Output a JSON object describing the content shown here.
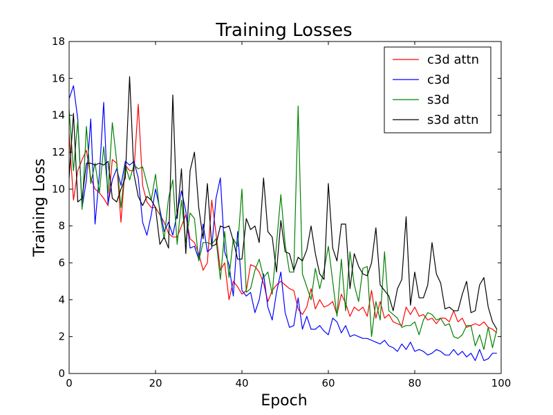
{
  "chart_data": {
    "type": "line",
    "title": "Training Losses",
    "xlabel": "Epoch",
    "ylabel": "Training Loss",
    "xlim": [
      0,
      100
    ],
    "ylim": [
      0,
      18
    ],
    "xticks": [
      0,
      20,
      40,
      60,
      80,
      100
    ],
    "yticks": [
      0,
      2,
      4,
      6,
      8,
      10,
      12,
      14,
      16,
      18
    ],
    "grid": false,
    "legend_position": "top-right",
    "series": [
      {
        "name": "c3d attn",
        "color": "#ff0000",
        "x": [
          0,
          1,
          2,
          3,
          4,
          5,
          6,
          7,
          8,
          9,
          10,
          11,
          12,
          13,
          14,
          15,
          16,
          17,
          18,
          19,
          20,
          21,
          22,
          23,
          24,
          25,
          26,
          27,
          28,
          29,
          30,
          31,
          32,
          33,
          34,
          35,
          36,
          37,
          38,
          39,
          40,
          41,
          42,
          43,
          44,
          45,
          46,
          47,
          48,
          49,
          50,
          51,
          52,
          53,
          54,
          55,
          56,
          57,
          58,
          59,
          60,
          61,
          62,
          63,
          64,
          65,
          66,
          67,
          68,
          69,
          70,
          71,
          72,
          73,
          74,
          75,
          76,
          77,
          78,
          79,
          80,
          81,
          82,
          83,
          84,
          85,
          86,
          87,
          88,
          89,
          90,
          91,
          92,
          93,
          94,
          95,
          96,
          97,
          98,
          99
        ],
        "y": [
          13.0,
          9.4,
          11.0,
          11.6,
          12.1,
          10.6,
          10.0,
          9.8,
          9.5,
          9.1,
          11.6,
          11.4,
          8.2,
          11.3,
          11.0,
          11.0,
          14.6,
          10.2,
          9.3,
          9.0,
          9.0,
          8.6,
          8.2,
          7.6,
          7.4,
          7.4,
          8.0,
          8.6,
          7.3,
          7.1,
          6.5,
          5.6,
          6.0,
          9.4,
          7.6,
          5.6,
          6.0,
          4.0,
          5.0,
          4.7,
          4.3,
          4.5,
          5.9,
          5.8,
          5.5,
          4.9,
          3.9,
          4.5,
          4.8,
          5.0,
          4.8,
          4.6,
          4.5,
          3.5,
          3.2,
          3.6,
          4.6,
          3.5,
          4.0,
          3.6,
          3.7,
          3.9,
          3.2,
          4.3,
          3.8,
          3.1,
          3.6,
          3.4,
          3.6,
          3.1,
          4.5,
          3.0,
          3.9,
          3.0,
          3.2,
          2.8,
          2.7,
          2.6,
          3.6,
          3.2,
          3.6,
          3.1,
          3.2,
          2.9,
          3.0,
          2.7,
          3.0,
          3.0,
          2.8,
          3.4,
          2.8,
          3.0,
          2.5,
          2.6,
          2.7,
          2.6,
          2.8,
          2.5,
          2.4,
          2.2
        ]
      },
      {
        "name": "c3d",
        "color": "#0000ff",
        "x": [
          0,
          1,
          2,
          3,
          4,
          5,
          6,
          7,
          8,
          9,
          10,
          11,
          12,
          13,
          14,
          15,
          16,
          17,
          18,
          19,
          20,
          21,
          22,
          23,
          24,
          25,
          26,
          27,
          28,
          29,
          30,
          31,
          32,
          33,
          34,
          35,
          36,
          37,
          38,
          39,
          40,
          41,
          42,
          43,
          44,
          45,
          46,
          47,
          48,
          49,
          50,
          51,
          52,
          53,
          54,
          55,
          56,
          57,
          58,
          59,
          60,
          61,
          62,
          63,
          64,
          65,
          66,
          67,
          68,
          69,
          70,
          71,
          72,
          73,
          74,
          75,
          76,
          77,
          78,
          79,
          80,
          81,
          82,
          83,
          84,
          85,
          86,
          87,
          88,
          89,
          90,
          91,
          92,
          93,
          94,
          95,
          96,
          97,
          98,
          99
        ],
        "y": [
          14.9,
          15.6,
          13.8,
          9.0,
          10.5,
          13.8,
          8.1,
          10.8,
          14.7,
          9.2,
          10.5,
          11.1,
          10.2,
          11.5,
          11.3,
          11.5,
          10.6,
          8.2,
          7.5,
          8.6,
          10.0,
          8.9,
          7.7,
          8.2,
          7.5,
          8.7,
          9.9,
          8.8,
          6.8,
          6.9,
          6.2,
          8.1,
          6.6,
          6.8,
          9.5,
          10.6,
          6.6,
          5.9,
          4.2,
          7.7,
          4.5,
          4.2,
          4.4,
          3.3,
          4.0,
          5.4,
          3.6,
          2.9,
          4.4,
          5.5,
          3.3,
          2.5,
          2.6,
          4.1,
          2.4,
          3.1,
          2.4,
          2.4,
          2.6,
          2.3,
          2.1,
          3.0,
          2.8,
          2.2,
          2.6,
          2.0,
          2.1,
          2.0,
          1.9,
          1.9,
          1.8,
          1.7,
          1.6,
          1.8,
          1.5,
          1.4,
          1.2,
          1.6,
          1.3,
          1.7,
          1.2,
          1.3,
          1.2,
          1.0,
          1.1,
          1.3,
          1.2,
          1.0,
          1.0,
          1.3,
          1.0,
          1.2,
          0.9,
          1.1,
          0.7,
          1.3,
          0.7,
          0.8,
          1.1,
          1.1
        ]
      },
      {
        "name": "s3d",
        "color": "#008000",
        "x": [
          0,
          1,
          2,
          3,
          4,
          5,
          6,
          7,
          8,
          9,
          10,
          11,
          12,
          13,
          14,
          15,
          16,
          17,
          18,
          19,
          20,
          21,
          22,
          23,
          24,
          25,
          26,
          27,
          28,
          29,
          30,
          31,
          32,
          33,
          34,
          35,
          36,
          37,
          38,
          39,
          40,
          41,
          42,
          43,
          44,
          45,
          46,
          47,
          48,
          49,
          50,
          51,
          52,
          53,
          54,
          55,
          56,
          57,
          58,
          59,
          60,
          61,
          62,
          63,
          64,
          65,
          66,
          67,
          68,
          69,
          70,
          71,
          72,
          73,
          74,
          75,
          76,
          77,
          78,
          79,
          80,
          81,
          82,
          83,
          84,
          85,
          86,
          87,
          88,
          89,
          90,
          91,
          92,
          93,
          94,
          95,
          96,
          97,
          98,
          99
        ],
        "y": [
          14.3,
          11.0,
          13.7,
          8.9,
          13.4,
          10.3,
          11.4,
          9.8,
          12.3,
          9.8,
          13.6,
          11.5,
          9.0,
          11.3,
          10.5,
          11.3,
          11.1,
          11.2,
          10.3,
          9.4,
          10.8,
          8.7,
          7.3,
          9.5,
          10.5,
          7.0,
          9.4,
          7.1,
          8.7,
          8.4,
          6.1,
          7.1,
          7.1,
          7.0,
          7.3,
          5.1,
          7.7,
          5.2,
          7.3,
          6.9,
          10.0,
          4.4,
          4.6,
          5.6,
          6.2,
          5.2,
          5.5,
          4.3,
          7.0,
          9.7,
          7.0,
          5.5,
          5.5,
          14.5,
          5.4,
          4.7,
          4.0,
          5.7,
          4.6,
          5.6,
          6.9,
          5.0,
          3.1,
          6.2,
          3.4,
          6.6,
          4.8,
          3.9,
          5.7,
          5.8,
          2.0,
          3.9,
          2.9,
          6.6,
          3.4,
          3.2,
          3.0,
          2.5,
          2.6,
          2.6,
          2.8,
          2.1,
          2.9,
          3.3,
          3.2,
          2.9,
          3.0,
          2.6,
          2.7,
          2.0,
          1.9,
          2.1,
          2.6,
          2.6,
          1.5,
          2.1,
          1.3,
          2.5,
          1.4,
          2.4
        ]
      },
      {
        "name": "s3d attn",
        "color": "#000000",
        "x": [
          0,
          1,
          2,
          3,
          4,
          5,
          6,
          7,
          8,
          9,
          10,
          11,
          12,
          13,
          14,
          15,
          16,
          17,
          18,
          19,
          20,
          21,
          22,
          23,
          24,
          25,
          26,
          27,
          28,
          29,
          30,
          31,
          32,
          33,
          34,
          35,
          36,
          37,
          38,
          39,
          40,
          41,
          42,
          43,
          44,
          45,
          46,
          47,
          48,
          49,
          50,
          51,
          52,
          53,
          54,
          55,
          56,
          57,
          58,
          59,
          60,
          61,
          62,
          63,
          64,
          65,
          66,
          67,
          68,
          69,
          70,
          71,
          72,
          73,
          74,
          75,
          76,
          77,
          78,
          79,
          80,
          81,
          82,
          83,
          84,
          85,
          86,
          87,
          88,
          89,
          90,
          91,
          92,
          93,
          94,
          95,
          96,
          97,
          98,
          99
        ],
        "y": [
          10.6,
          14.1,
          9.3,
          9.5,
          11.4,
          11.4,
          11.3,
          11.4,
          11.3,
          11.5,
          9.5,
          9.3,
          10.0,
          10.6,
          16.1,
          10.8,
          9.6,
          9.1,
          9.6,
          9.4,
          9.0,
          7.0,
          7.4,
          6.8,
          15.1,
          8.4,
          11.1,
          6.5,
          11.0,
          12.0,
          9.0,
          7.3,
          10.3,
          6.9,
          7.0,
          8.0,
          7.9,
          8.0,
          7.2,
          6.2,
          6.2,
          8.4,
          7.8,
          8.0,
          7.1,
          10.6,
          7.7,
          7.4,
          5.5,
          8.3,
          6.6,
          6.5,
          5.6,
          6.3,
          6.1,
          6.7,
          8.0,
          6.5,
          5.4,
          5.1,
          10.3,
          6.8,
          6.1,
          8.1,
          8.1,
          4.6,
          6.5,
          5.8,
          5.4,
          5.3,
          6.0,
          7.9,
          4.8,
          4.5,
          4.2,
          3.4,
          4.6,
          5.1,
          8.5,
          3.7,
          5.5,
          4.1,
          4.1,
          4.8,
          7.1,
          5.4,
          4.9,
          3.5,
          3.6,
          3.4,
          3.4,
          4.3,
          5.0,
          3.3,
          3.4,
          4.8,
          5.2,
          3.6,
          2.8,
          2.4
        ]
      }
    ]
  }
}
